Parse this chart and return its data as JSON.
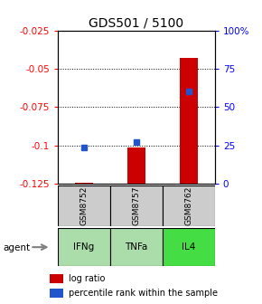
{
  "title": "GDS501 / 5100",
  "categories": [
    "GSM8752",
    "GSM8757",
    "GSM8762"
  ],
  "agents": [
    "IFNg",
    "TNFa",
    "IL4"
  ],
  "log_ratios": [
    -0.1245,
    -0.101,
    -0.043
  ],
  "percentile_ranks": [
    24,
    27,
    60
  ],
  "bar_bottom": -0.125,
  "ylim_left": [
    -0.125,
    -0.025
  ],
  "ylim_right": [
    0,
    100
  ],
  "left_ticks": [
    -0.025,
    -0.05,
    -0.075,
    -0.1,
    -0.125
  ],
  "right_ticks": [
    100,
    75,
    50,
    25,
    0
  ],
  "bar_color": "#cc0000",
  "dot_color": "#2255cc",
  "gsm_bg_color": "#cccccc",
  "agent_colors": [
    "#aaddaa",
    "#aaddaa",
    "#44dd44"
  ],
  "legend_bar_label": "log ratio",
  "legend_dot_label": "percentile rank within the sample",
  "title_fontsize": 10,
  "tick_fontsize": 7.5,
  "bar_width": 0.35
}
